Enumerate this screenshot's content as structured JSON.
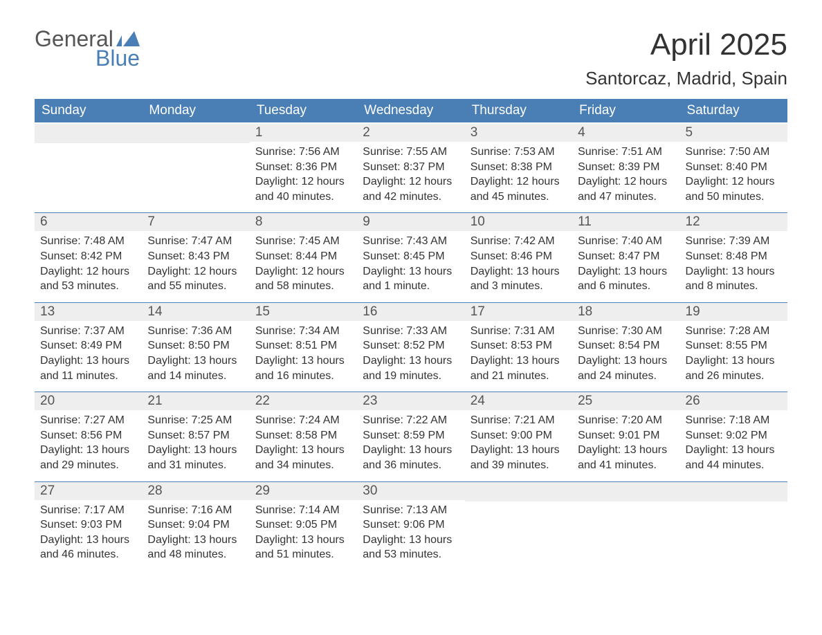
{
  "brand": {
    "word1": "General",
    "word2": "Blue",
    "accent_color": "#4a7fb5",
    "text_color": "#555555"
  },
  "title": "April 2025",
  "location": "Santorcaz, Madrid, Spain",
  "colors": {
    "header_bg": "#4a7fb5",
    "header_text": "#ffffff",
    "daynum_bg": "#eeeeee",
    "daynum_text": "#555555",
    "body_text": "#333333",
    "row_divider": "#4a7fb5",
    "page_bg": "#ffffff"
  },
  "typography": {
    "title_fontsize": 44,
    "location_fontsize": 26,
    "header_fontsize": 19,
    "daynum_fontsize": 19,
    "body_fontsize": 16
  },
  "day_headers": [
    "Sunday",
    "Monday",
    "Tuesday",
    "Wednesday",
    "Thursday",
    "Friday",
    "Saturday"
  ],
  "weeks": [
    [
      {
        "empty": true
      },
      {
        "empty": true
      },
      {
        "num": "1",
        "sunrise": "Sunrise: 7:56 AM",
        "sunset": "Sunset: 8:36 PM",
        "daylight": "Daylight: 12 hours and 40 minutes."
      },
      {
        "num": "2",
        "sunrise": "Sunrise: 7:55 AM",
        "sunset": "Sunset: 8:37 PM",
        "daylight": "Daylight: 12 hours and 42 minutes."
      },
      {
        "num": "3",
        "sunrise": "Sunrise: 7:53 AM",
        "sunset": "Sunset: 8:38 PM",
        "daylight": "Daylight: 12 hours and 45 minutes."
      },
      {
        "num": "4",
        "sunrise": "Sunrise: 7:51 AM",
        "sunset": "Sunset: 8:39 PM",
        "daylight": "Daylight: 12 hours and 47 minutes."
      },
      {
        "num": "5",
        "sunrise": "Sunrise: 7:50 AM",
        "sunset": "Sunset: 8:40 PM",
        "daylight": "Daylight: 12 hours and 50 minutes."
      }
    ],
    [
      {
        "num": "6",
        "sunrise": "Sunrise: 7:48 AM",
        "sunset": "Sunset: 8:42 PM",
        "daylight": "Daylight: 12 hours and 53 minutes."
      },
      {
        "num": "7",
        "sunrise": "Sunrise: 7:47 AM",
        "sunset": "Sunset: 8:43 PM",
        "daylight": "Daylight: 12 hours and 55 minutes."
      },
      {
        "num": "8",
        "sunrise": "Sunrise: 7:45 AM",
        "sunset": "Sunset: 8:44 PM",
        "daylight": "Daylight: 12 hours and 58 minutes."
      },
      {
        "num": "9",
        "sunrise": "Sunrise: 7:43 AM",
        "sunset": "Sunset: 8:45 PM",
        "daylight": "Daylight: 13 hours and 1 minute."
      },
      {
        "num": "10",
        "sunrise": "Sunrise: 7:42 AM",
        "sunset": "Sunset: 8:46 PM",
        "daylight": "Daylight: 13 hours and 3 minutes."
      },
      {
        "num": "11",
        "sunrise": "Sunrise: 7:40 AM",
        "sunset": "Sunset: 8:47 PM",
        "daylight": "Daylight: 13 hours and 6 minutes."
      },
      {
        "num": "12",
        "sunrise": "Sunrise: 7:39 AM",
        "sunset": "Sunset: 8:48 PM",
        "daylight": "Daylight: 13 hours and 8 minutes."
      }
    ],
    [
      {
        "num": "13",
        "sunrise": "Sunrise: 7:37 AM",
        "sunset": "Sunset: 8:49 PM",
        "daylight": "Daylight: 13 hours and 11 minutes."
      },
      {
        "num": "14",
        "sunrise": "Sunrise: 7:36 AM",
        "sunset": "Sunset: 8:50 PM",
        "daylight": "Daylight: 13 hours and 14 minutes."
      },
      {
        "num": "15",
        "sunrise": "Sunrise: 7:34 AM",
        "sunset": "Sunset: 8:51 PM",
        "daylight": "Daylight: 13 hours and 16 minutes."
      },
      {
        "num": "16",
        "sunrise": "Sunrise: 7:33 AM",
        "sunset": "Sunset: 8:52 PM",
        "daylight": "Daylight: 13 hours and 19 minutes."
      },
      {
        "num": "17",
        "sunrise": "Sunrise: 7:31 AM",
        "sunset": "Sunset: 8:53 PM",
        "daylight": "Daylight: 13 hours and 21 minutes."
      },
      {
        "num": "18",
        "sunrise": "Sunrise: 7:30 AM",
        "sunset": "Sunset: 8:54 PM",
        "daylight": "Daylight: 13 hours and 24 minutes."
      },
      {
        "num": "19",
        "sunrise": "Sunrise: 7:28 AM",
        "sunset": "Sunset: 8:55 PM",
        "daylight": "Daylight: 13 hours and 26 minutes."
      }
    ],
    [
      {
        "num": "20",
        "sunrise": "Sunrise: 7:27 AM",
        "sunset": "Sunset: 8:56 PM",
        "daylight": "Daylight: 13 hours and 29 minutes."
      },
      {
        "num": "21",
        "sunrise": "Sunrise: 7:25 AM",
        "sunset": "Sunset: 8:57 PM",
        "daylight": "Daylight: 13 hours and 31 minutes."
      },
      {
        "num": "22",
        "sunrise": "Sunrise: 7:24 AM",
        "sunset": "Sunset: 8:58 PM",
        "daylight": "Daylight: 13 hours and 34 minutes."
      },
      {
        "num": "23",
        "sunrise": "Sunrise: 7:22 AM",
        "sunset": "Sunset: 8:59 PM",
        "daylight": "Daylight: 13 hours and 36 minutes."
      },
      {
        "num": "24",
        "sunrise": "Sunrise: 7:21 AM",
        "sunset": "Sunset: 9:00 PM",
        "daylight": "Daylight: 13 hours and 39 minutes."
      },
      {
        "num": "25",
        "sunrise": "Sunrise: 7:20 AM",
        "sunset": "Sunset: 9:01 PM",
        "daylight": "Daylight: 13 hours and 41 minutes."
      },
      {
        "num": "26",
        "sunrise": "Sunrise: 7:18 AM",
        "sunset": "Sunset: 9:02 PM",
        "daylight": "Daylight: 13 hours and 44 minutes."
      }
    ],
    [
      {
        "num": "27",
        "sunrise": "Sunrise: 7:17 AM",
        "sunset": "Sunset: 9:03 PM",
        "daylight": "Daylight: 13 hours and 46 minutes."
      },
      {
        "num": "28",
        "sunrise": "Sunrise: 7:16 AM",
        "sunset": "Sunset: 9:04 PM",
        "daylight": "Daylight: 13 hours and 48 minutes."
      },
      {
        "num": "29",
        "sunrise": "Sunrise: 7:14 AM",
        "sunset": "Sunset: 9:05 PM",
        "daylight": "Daylight: 13 hours and 51 minutes."
      },
      {
        "num": "30",
        "sunrise": "Sunrise: 7:13 AM",
        "sunset": "Sunset: 9:06 PM",
        "daylight": "Daylight: 13 hours and 53 minutes."
      },
      {
        "empty": true
      },
      {
        "empty": true
      },
      {
        "empty": true
      }
    ]
  ]
}
